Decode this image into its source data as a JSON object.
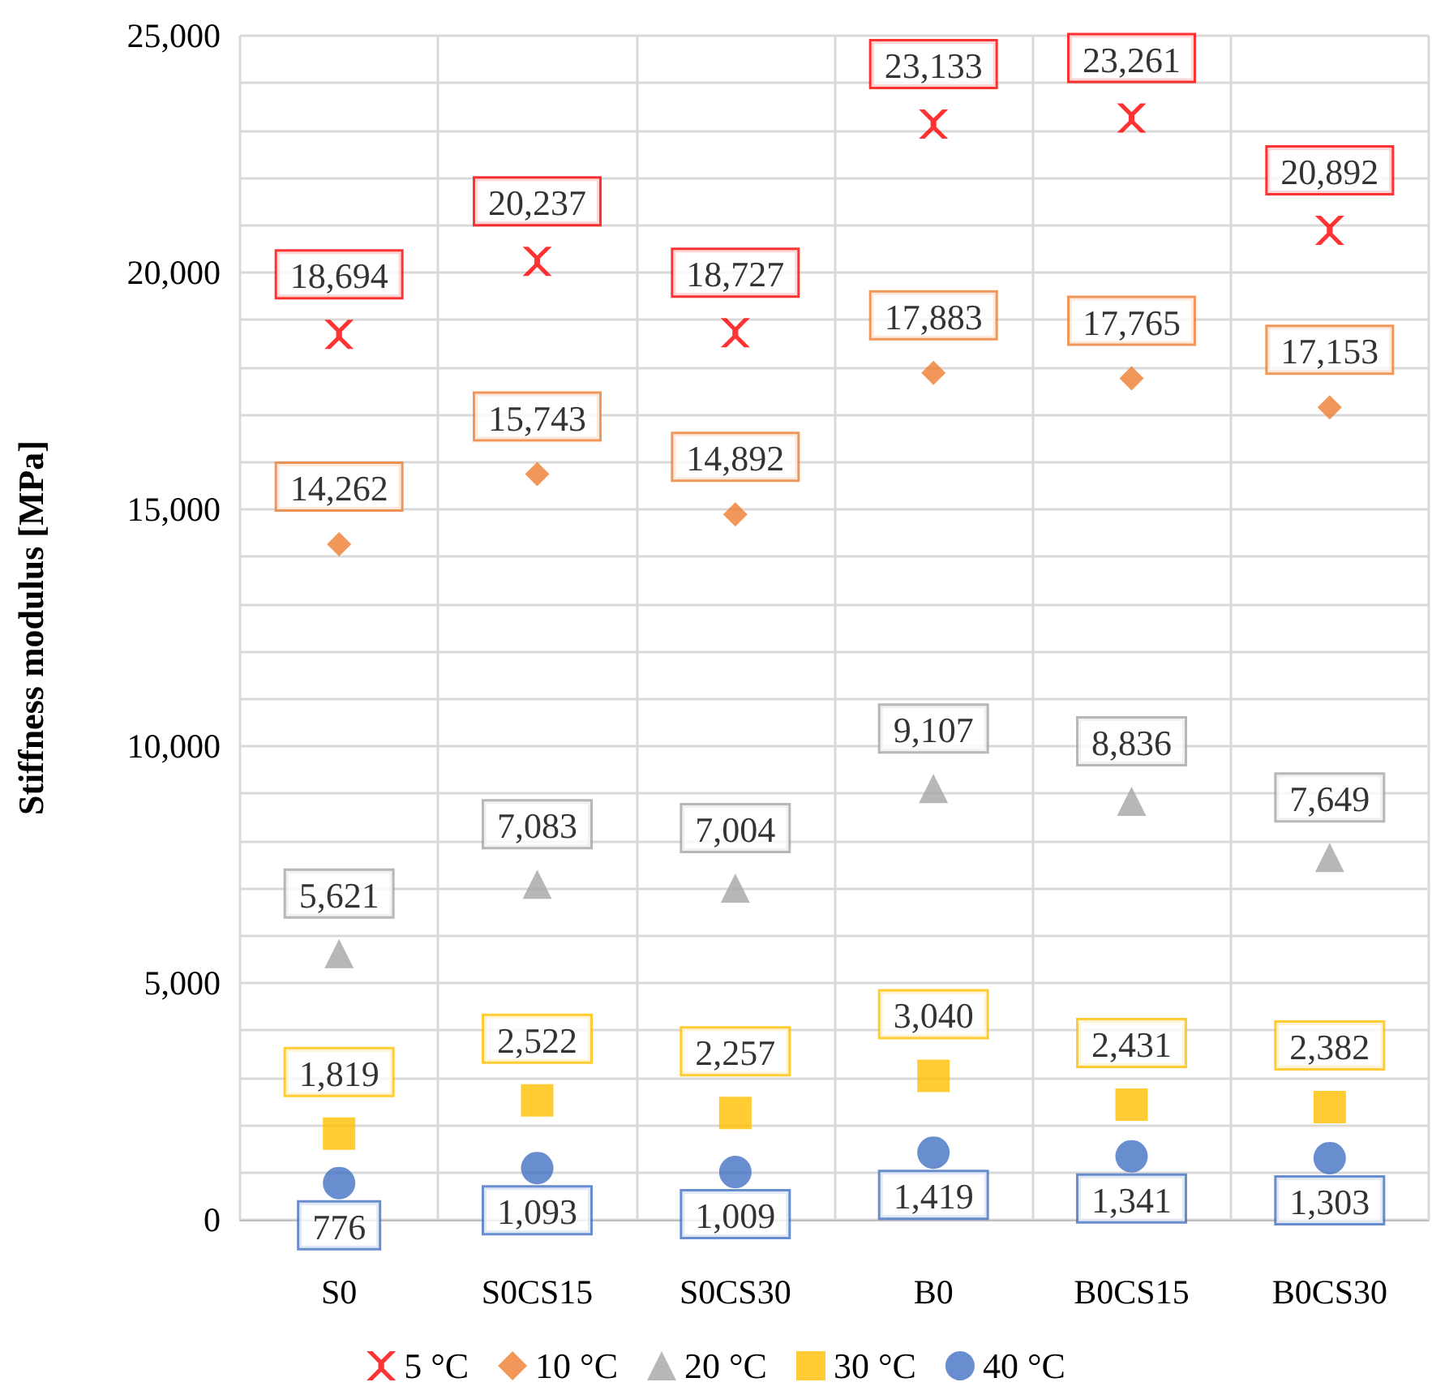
{
  "chart_data": {
    "type": "scatter",
    "ylabel": "Stiffness modulus [MPa]",
    "categories": [
      "S0",
      "S0CS15",
      "S0CS30",
      "B0",
      "B0CS15",
      "B0CS30"
    ],
    "series": [
      {
        "name": "5 °C",
        "color": "#ff0000",
        "marker": "cross",
        "values": [
          18694,
          20237,
          18727,
          23133,
          23261,
          20892
        ],
        "value_labels": [
          "18,694",
          "20,237",
          "18,727",
          "23,133",
          "23,261",
          "20,892"
        ]
      },
      {
        "name": "10 °C",
        "color": "#ed7d31",
        "marker": "diamond",
        "values": [
          14262,
          15743,
          14892,
          17883,
          17765,
          17153
        ],
        "value_labels": [
          "14,262",
          "15,743",
          "14,892",
          "17,883",
          "17,765",
          "17,153"
        ]
      },
      {
        "name": "20 °C",
        "color": "#a5a5a5",
        "marker": "triangle",
        "values": [
          5621,
          7083,
          7004,
          9107,
          8836,
          7649
        ],
        "value_labels": [
          "5,621",
          "7,083",
          "7,004",
          "9,107",
          "8,836",
          "7,649"
        ]
      },
      {
        "name": "30 °C",
        "color": "#ffc000",
        "marker": "square",
        "values": [
          1819,
          2522,
          2257,
          3040,
          2431,
          2382
        ],
        "value_labels": [
          "1,819",
          "2,522",
          "2,257",
          "3,040",
          "2,431",
          "2,382"
        ]
      },
      {
        "name": "40 °C",
        "color": "#4472c4",
        "marker": "circle",
        "values": [
          776,
          1093,
          1009,
          1419,
          1341,
          1303
        ],
        "value_labels": [
          "776",
          "1,093",
          "1,009",
          "1,419",
          "1,341",
          "1,303"
        ]
      }
    ],
    "ylim": [
      0,
      25000
    ],
    "yticks": [
      {
        "value": 0,
        "label": "0"
      },
      {
        "value": 1000,
        "label": null
      },
      {
        "value": 2000,
        "label": null
      },
      {
        "value": 3000,
        "label": null
      },
      {
        "value": 4000,
        "label": null
      },
      {
        "value": 5000,
        "label": "5,000"
      },
      {
        "value": 6000,
        "label": null
      },
      {
        "value": 7000,
        "label": null
      },
      {
        "value": 8000,
        "label": null
      },
      {
        "value": 9000,
        "label": null
      },
      {
        "value": 10000,
        "label": "10,000"
      },
      {
        "value": 11000,
        "label": null
      },
      {
        "value": 12000,
        "label": null
      },
      {
        "value": 13000,
        "label": null
      },
      {
        "value": 14000,
        "label": null
      },
      {
        "value": 15000,
        "label": "15,000"
      },
      {
        "value": 16000,
        "label": null
      },
      {
        "value": 17000,
        "label": null
      },
      {
        "value": 18000,
        "label": null
      },
      {
        "value": 19000,
        "label": null
      },
      {
        "value": 20000,
        "label": "20,000"
      },
      {
        "value": 21000,
        "label": null
      },
      {
        "value": 22000,
        "label": null
      },
      {
        "value": 23000,
        "label": null
      },
      {
        "value": 24000,
        "label": null
      },
      {
        "value": 25000,
        "label": "25,000"
      }
    ],
    "grid": true,
    "legend": "bottom"
  }
}
